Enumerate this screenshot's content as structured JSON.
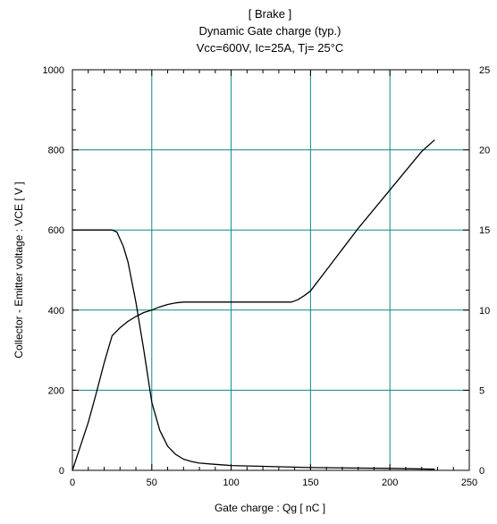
{
  "chart_data": {
    "type": "line",
    "title": [
      "[ Brake ]",
      "Dynamic Gate charge  (typ.)",
      "Vcc=600V, Ic=25A, Tj= 25°C"
    ],
    "xlabel": "Gate charge :  Qg  [ nC ]",
    "ylabel": "Collector - Emitter voltage  :  VCE  [ V ]",
    "y2label": "",
    "xlim": [
      0,
      250
    ],
    "ylim": [
      0,
      1000
    ],
    "y2lim": [
      0,
      25
    ],
    "xticks": [
      "0",
      "50",
      "100",
      "150",
      "200",
      "250"
    ],
    "yticks": [
      "0",
      "200",
      "400",
      "600",
      "800",
      "1000"
    ],
    "y2ticks": [
      "0",
      "5",
      "10",
      "15",
      "20",
      "25"
    ],
    "grid": true,
    "colors": {
      "grid": "#0b8a8a",
      "frame": "#000000",
      "curve": "#000000"
    },
    "series": [
      {
        "axis": "left",
        "x": [
          0,
          10,
          20,
          25,
          28,
          32,
          35,
          40,
          45,
          50,
          55,
          60,
          65,
          70,
          75,
          80,
          90,
          100,
          120,
          150,
          200,
          228
        ],
        "y": [
          600,
          600,
          600,
          600,
          595,
          560,
          520,
          420,
          300,
          170,
          100,
          60,
          40,
          28,
          22,
          18,
          15,
          12,
          10,
          7,
          5,
          3
        ]
      },
      {
        "axis": "right",
        "x": [
          0,
          5,
          10,
          15,
          20,
          25,
          30,
          35,
          40,
          45,
          50,
          55,
          60,
          65,
          70,
          80,
          100,
          120,
          130,
          138,
          142,
          146,
          150,
          160,
          180,
          200,
          220,
          228
        ],
        "y": [
          0,
          1.5,
          3,
          4.8,
          6.7,
          8.4,
          8.9,
          9.3,
          9.6,
          9.85,
          10.0,
          10.2,
          10.35,
          10.45,
          10.5,
          10.5,
          10.5,
          10.5,
          10.5,
          10.5,
          10.65,
          10.9,
          11.2,
          12.5,
          15.1,
          17.5,
          19.9,
          20.6
        ]
      }
    ]
  }
}
